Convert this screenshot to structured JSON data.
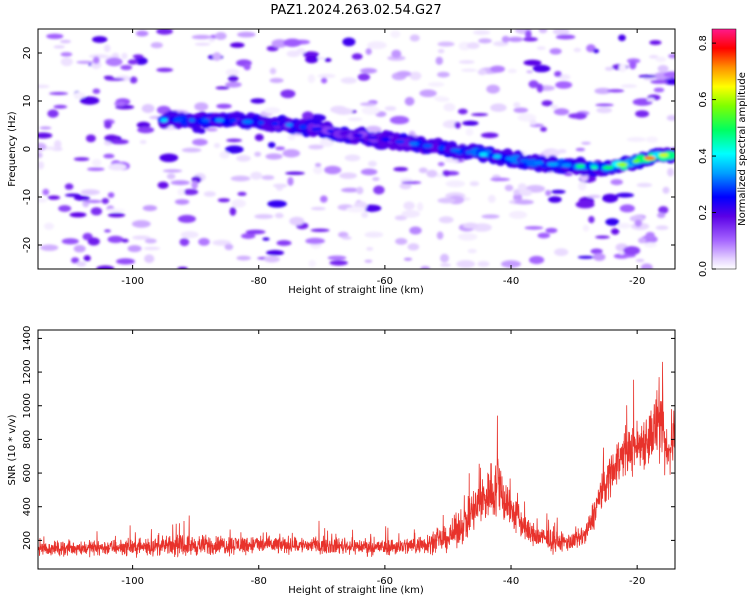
{
  "title": "PAZ1.2024.263.02.54.G27",
  "chart_data": [
    {
      "type": "heatmap",
      "xlabel": "Height of straight line (km)",
      "ylabel": "Frequency (Hz)",
      "xlim": [
        -115,
        -14
      ],
      "ylim": [
        -25,
        25
      ],
      "xticks": [
        -100,
        -80,
        -60,
        -40,
        -20
      ],
      "yticks": [
        -20,
        -10,
        0,
        10,
        20
      ],
      "colorbar": {
        "label": "Normalized spectral amplitude",
        "range": [
          0.0,
          0.85
        ],
        "ticks": [
          0.0,
          0.2,
          0.4,
          0.6,
          0.8
        ],
        "colormap": "rainbow (white-violet-blue-cyan-green-yellow-orange-red-magenta)"
      },
      "ridge": {
        "x": [
          -95,
          -85,
          -75,
          -65,
          -55,
          -45,
          -35,
          -25,
          -15
        ],
        "frequency": [
          6,
          6,
          5,
          3,
          1,
          -1,
          -3,
          -4,
          -1
        ],
        "amplitude": [
          0.35,
          0.3,
          0.3,
          0.2,
          0.3,
          0.4,
          0.35,
          0.5,
          0.75
        ]
      },
      "grid": false
    },
    {
      "type": "line",
      "xlabel": "Height of straight line (km)",
      "ylabel": "SNR (10 * v/v)",
      "xlim": [
        -115,
        -14
      ],
      "ylim": [
        30,
        1450
      ],
      "xticks": [
        -100,
        -80,
        -60,
        -40,
        -20
      ],
      "yticks": [
        200,
        400,
        600,
        800,
        1000,
        1200,
        1400
      ],
      "color": "#e8322b",
      "envelope": {
        "x": [
          -115,
          -100,
          -90,
          -80,
          -70,
          -60,
          -55,
          -50,
          -47,
          -45,
          -43,
          -42,
          -40,
          -37,
          -33,
          -30,
          -28,
          -26,
          -24,
          -22,
          -20,
          -18,
          -16.5,
          -16,
          -15,
          -14
        ],
        "mean": [
          150,
          160,
          170,
          175,
          170,
          160,
          170,
          210,
          320,
          420,
          500,
          520,
          380,
          240,
          190,
          190,
          240,
          450,
          620,
          720,
          760,
          820,
          900,
          780,
          700,
          850
        ],
        "spread": [
          60,
          70,
          90,
          80,
          70,
          70,
          80,
          110,
          180,
          230,
          260,
          300,
          180,
          110,
          90,
          80,
          100,
          160,
          200,
          200,
          220,
          260,
          340,
          280,
          220,
          200
        ]
      },
      "grid": false
    }
  ]
}
